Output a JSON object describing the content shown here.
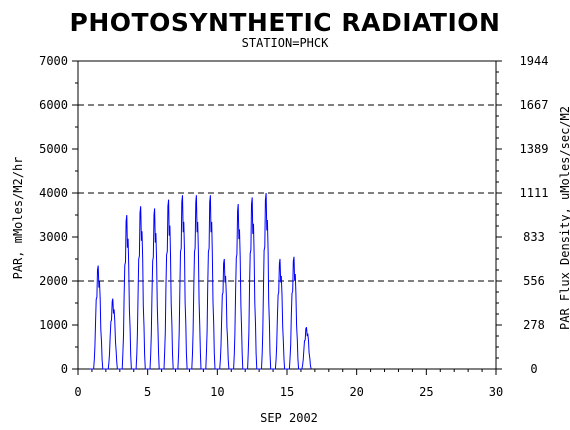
{
  "chart_data": {
    "type": "line",
    "title": "PHOTOSYNTHETIC RADIATION",
    "subtitle": "STATION=PHCK",
    "xlabel": "SEP 2002",
    "ylabel": "PAR, mMoles/M2/hr",
    "y2label": "PAR Flux Density, uMoles/sec/M2",
    "xlim": [
      0,
      30
    ],
    "ylim": [
      0,
      7000
    ],
    "x_ticks": [
      0,
      5,
      10,
      15,
      20,
      25,
      30
    ],
    "y_ticks": [
      0,
      1000,
      2000,
      3000,
      4000,
      5000,
      6000,
      7000
    ],
    "y2_tick_labels": [
      "0",
      "278",
      "556",
      "833",
      "1111",
      "1389",
      "1667",
      "1944"
    ],
    "reference_lines": [
      2000,
      4000,
      6000
    ],
    "grid": false,
    "series": [
      {
        "color": "#0000ff",
        "daily_peaks": [
          {
            "day": 1.45,
            "peak": 2350
          },
          {
            "day": 2.5,
            "peak": 1600
          },
          {
            "day": 3.5,
            "peak": 3500
          },
          {
            "day": 4.5,
            "peak": 3700
          },
          {
            "day": 5.5,
            "peak": 3650
          },
          {
            "day": 6.5,
            "peak": 3850
          },
          {
            "day": 7.5,
            "peak": 3950
          },
          {
            "day": 8.5,
            "peak": 3950
          },
          {
            "day": 9.5,
            "peak": 3950
          },
          {
            "day": 10.5,
            "peak": 2500
          },
          {
            "day": 11.5,
            "peak": 3750
          },
          {
            "day": 12.5,
            "peak": 3900
          },
          {
            "day": 13.5,
            "peak": 4000
          },
          {
            "day": 14.5,
            "peak": 2500
          },
          {
            "day": 15.5,
            "peak": 2550
          },
          {
            "day": 16.4,
            "peak": 950
          }
        ]
      }
    ]
  }
}
